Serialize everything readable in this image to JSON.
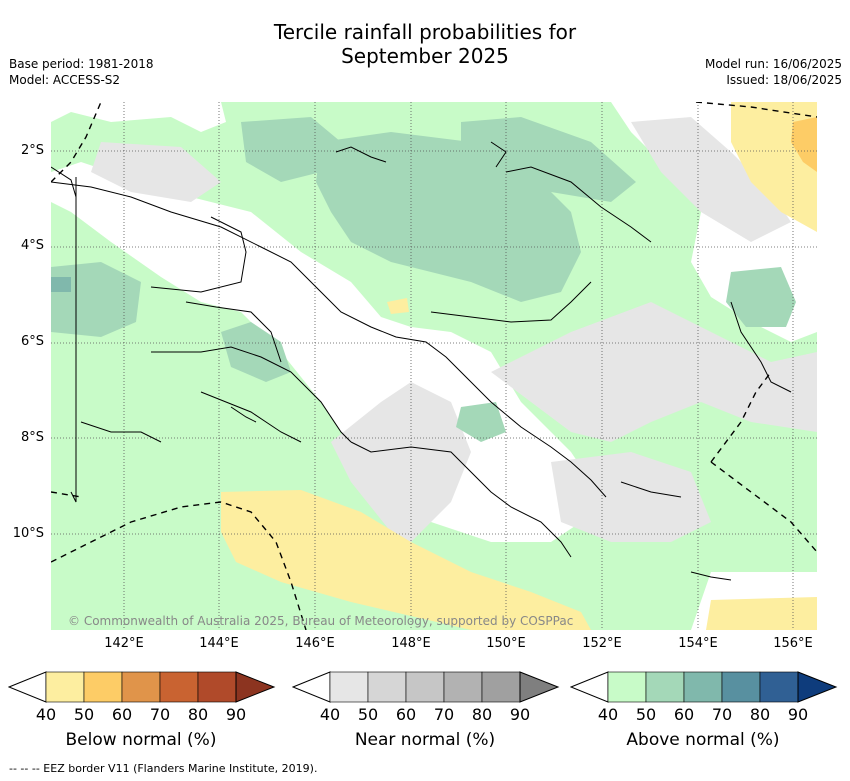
{
  "header": {
    "title_line1": "Tercile rainfall probabilities for",
    "title_line2": "September 2025",
    "base_period": "Base period: 1981-2018",
    "model": "Model: ACCESS-S2",
    "model_run": "Model run: 16/06/2025",
    "issued": "Issued: 18/06/2025"
  },
  "map": {
    "lat_labels": [
      "2°S",
      "4°S",
      "6°S",
      "8°S",
      "10°S"
    ],
    "lon_labels": [
      "142°E",
      "144°E",
      "146°E",
      "148°E",
      "150°E",
      "152°E",
      "154°E",
      "156°E"
    ],
    "copyright": "© Commonwealth of Australia 2025, Bureau of Meteorology, supported by COSPPac"
  },
  "legends": [
    {
      "title": "Below normal (%)",
      "ticks": [
        "40",
        "50",
        "60",
        "70",
        "80",
        "90"
      ],
      "colors": [
        "#fdeea0",
        "#fdcc66",
        "#e0944a",
        "#c96331",
        "#b04a2a",
        "#8c3420"
      ]
    },
    {
      "title": "Near normal (%)",
      "ticks": [
        "40",
        "50",
        "60",
        "70",
        "80",
        "90"
      ],
      "colors": [
        "#e6e6e6",
        "#d6d6d6",
        "#c6c6c6",
        "#b2b2b2",
        "#a0a0a0",
        "#7f7f7f"
      ]
    },
    {
      "title": "Above normal (%)",
      "ticks": [
        "40",
        "50",
        "60",
        "70",
        "80",
        "90"
      ],
      "colors": [
        "#c8fbc8",
        "#a4d8b8",
        "#80b8ac",
        "#5890a0",
        "#306094",
        "#0e3c7c"
      ]
    }
  ],
  "footnote": "--  --  -- EEZ border V11 (Flanders Marine Institute, 2019)."
}
